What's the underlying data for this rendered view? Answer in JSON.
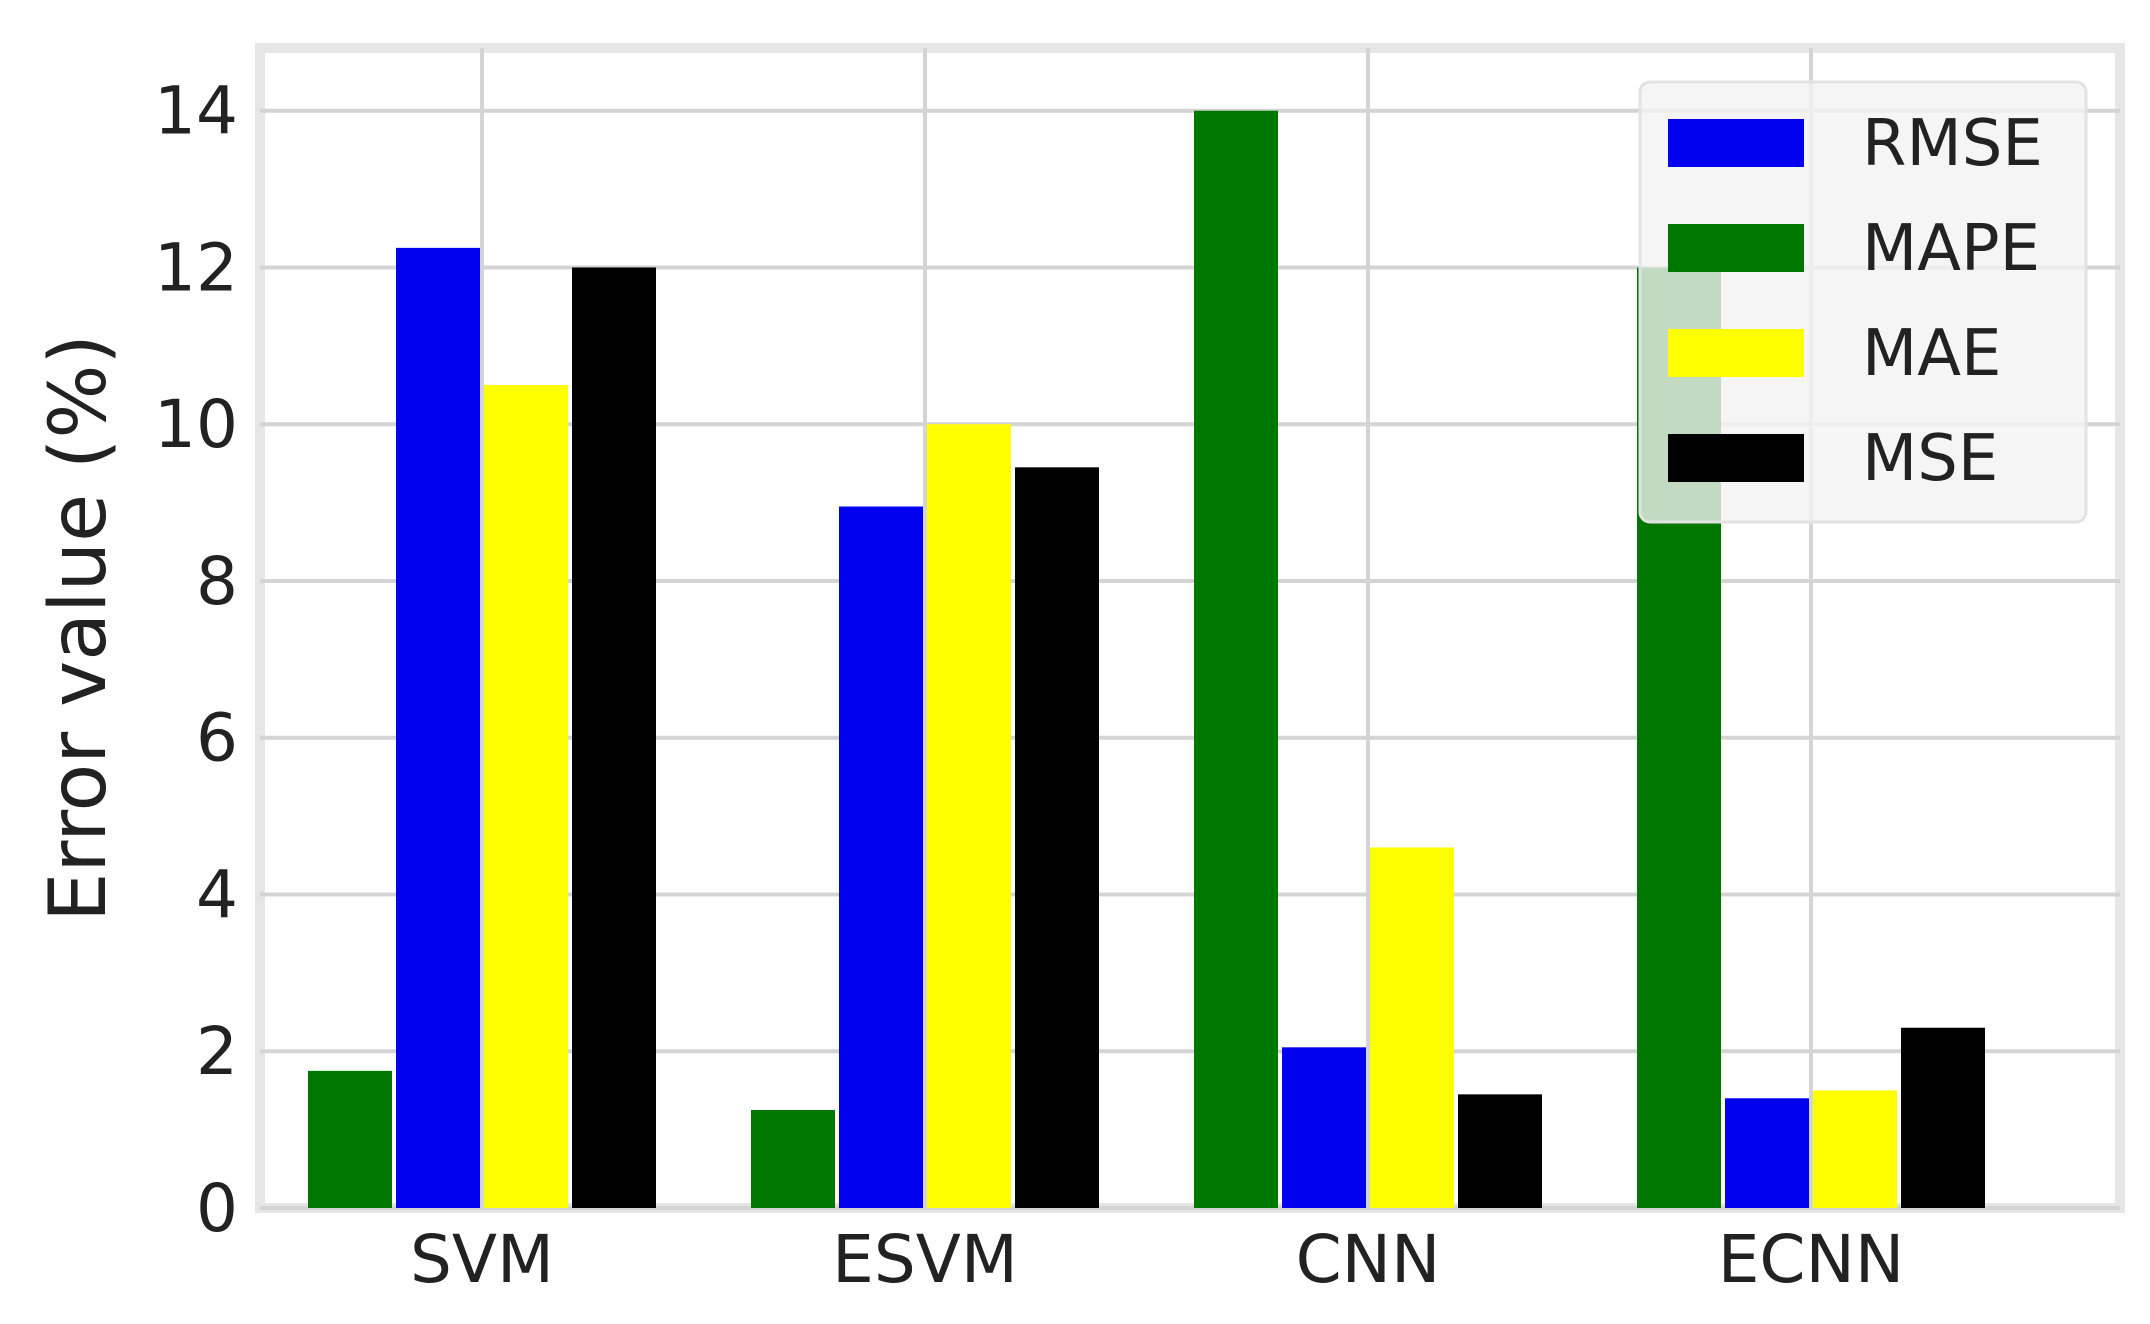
{
  "chart_data": {
    "type": "bar",
    "title": "",
    "xlabel": "",
    "ylabel": "Error value (%)",
    "ylim": [
      0,
      14.8
    ],
    "yticks": [
      "0",
      "2",
      "4",
      "6",
      "8",
      "10",
      "12",
      "14"
    ],
    "grid": true,
    "legend_position": "top-right",
    "categories": [
      "SVM",
      "ESVM",
      "CNN",
      "ECNN"
    ],
    "series": [
      {
        "name": "MAPE",
        "color": "#007700",
        "values": [
          1.75,
          1.25,
          14.0,
          12.0
        ]
      },
      {
        "name": "RMSE",
        "color": "#0000ee",
        "values": [
          12.25,
          8.95,
          2.05,
          1.4
        ]
      },
      {
        "name": "MAE",
        "color": "#ffff00",
        "values": [
          10.5,
          10.0,
          4.6,
          1.5
        ]
      },
      {
        "name": "MSE",
        "color": "#000000",
        "values": [
          12.0,
          9.45,
          1.45,
          2.3
        ]
      }
    ],
    "legend": [
      {
        "name": "RMSE",
        "color": "#0000ee"
      },
      {
        "name": "MAPE",
        "color": "#007700"
      },
      {
        "name": "MAE",
        "color": "#ffff00"
      },
      {
        "name": "MSE",
        "color": "#000000"
      }
    ]
  }
}
